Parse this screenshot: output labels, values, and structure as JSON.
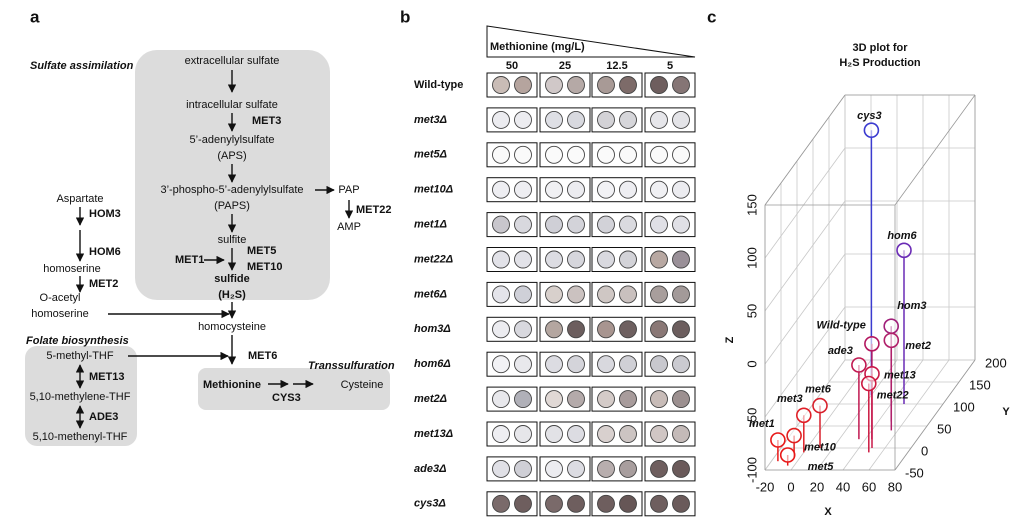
{
  "panel_a": {
    "label": "a",
    "sections": {
      "sulfate": "Sulfate assimilation",
      "folate": "Folate biosynthesis",
      "trans": "Transsulfuration"
    },
    "nodes": {
      "extracellular": "extracellular  sulfate",
      "intracellular": "intracellular  sulfate",
      "aps": "5’-adenylylsulfate",
      "aps_abbr": "(APS)",
      "paps": "3’-phospho-5’-adenylylsulfate",
      "paps_abbr": "(PAPS)",
      "pap": "PAP",
      "amp": "AMP",
      "sulfite": "sulfite",
      "sulfide": "sulfide",
      "h2s": "(H₂S)",
      "aspartate": "Aspartate",
      "homoserine": "homoserine",
      "o_acetyl": "O-acetyl",
      "o_acetyl_2": "homoserine",
      "homocysteine": "homocysteine",
      "methionine": "Methionine",
      "cysteine": "Cysteine",
      "methyl_thf": "5-methyl-THF",
      "methylene_thf": "5,10-methylene-THF",
      "methenyl_thf": "5,10-methenyl-THF"
    },
    "enzymes": {
      "met3": "MET3",
      "met22": "MET22",
      "met5": "MET5",
      "met10": "MET10",
      "met1": "MET1",
      "hom3": "HOM3",
      "hom6": "HOM6",
      "met2": "MET2",
      "met6": "MET6",
      "met13": "MET13",
      "ade3": "ADE3",
      "cys3": "CYS3"
    }
  },
  "panel_b": {
    "label": "b",
    "header": "Methionine (mg/L)",
    "columns": [
      "50",
      "25",
      "12.5",
      "5"
    ],
    "rows": [
      {
        "label": "Wild-type",
        "colors": [
          [
            "#c9bcb6",
            "#b5a49e"
          ],
          [
            "#d0c8c8",
            "#b5a9a6"
          ],
          [
            "#a89a96",
            "#7d6b69"
          ],
          [
            "#6e5e5e",
            "#857575"
          ]
        ]
      },
      {
        "label": "met3Δ",
        "colors": [
          [
            "#ececf0",
            "#ececf0"
          ],
          [
            "#dedfe5",
            "#d8d9df"
          ],
          [
            "#d3d2d6",
            "#d6d6da"
          ],
          [
            "#e6e6ea",
            "#e4e4e8"
          ]
        ]
      },
      {
        "label": "met5Δ",
        "colors": [
          [
            "#fafafa",
            "#fafafa"
          ],
          [
            "#fafafa",
            "#fafafa"
          ],
          [
            "#fafafa",
            "#fafafa"
          ],
          [
            "#fafafa",
            "#fafafa"
          ]
        ]
      },
      {
        "label": "met10Δ",
        "colors": [
          [
            "#eeeef2",
            "#eeeef2"
          ],
          [
            "#f0f0f3",
            "#ececf0"
          ],
          [
            "#f2f2f5",
            "#eeeef2"
          ],
          [
            "#f0f0f3",
            "#ececf0"
          ]
        ]
      },
      {
        "label": "met1Δ",
        "colors": [
          [
            "#c8c6cc",
            "#d8d8de"
          ],
          [
            "#cfcfd6",
            "#d3d3d9"
          ],
          [
            "#d2d2d8",
            "#dadadf"
          ],
          [
            "#e0e0e6",
            "#e0e0e6"
          ]
        ]
      },
      {
        "label": "met22Δ",
        "colors": [
          [
            "#e2e2e8",
            "#e2e2e8"
          ],
          [
            "#dcdce2",
            "#d6d6dc"
          ],
          [
            "#d9d9df",
            "#d3d3d8"
          ],
          [
            "#b8a8a2",
            "#9a9098"
          ]
        ]
      },
      {
        "label": "met6Δ",
        "colors": [
          [
            "#e4e4ea",
            "#cfd0d8"
          ],
          [
            "#d8d0cc",
            "#cbc2c0"
          ],
          [
            "#cfc7c4",
            "#c9c0be"
          ],
          [
            "#a89e9c",
            "#a39a99"
          ]
        ]
      },
      {
        "label": "hom3Δ",
        "colors": [
          [
            "#ececf0",
            "#d8d8de"
          ],
          [
            "#b4a6a0",
            "#6c5e5e"
          ],
          [
            "#a89590",
            "#6e6060"
          ],
          [
            "#8a7876",
            "#6c5e5e"
          ]
        ]
      },
      {
        "label": "hom6Δ",
        "colors": [
          [
            "#f2f2f5",
            "#e8e8ec"
          ],
          [
            "#dcdce2",
            "#d4d4da"
          ],
          [
            "#d8d8de",
            "#d0d0d6"
          ],
          [
            "#c8c8ce",
            "#cacad0"
          ]
        ]
      },
      {
        "label": "met2Δ",
        "colors": [
          [
            "#e8e8ec",
            "#b0b0b8"
          ],
          [
            "#e0d8d5",
            "#b4aaaa"
          ],
          [
            "#d4cbc8",
            "#a89c9c"
          ],
          [
            "#c8bcb8",
            "#9c9090"
          ]
        ]
      },
      {
        "label": "met13Δ",
        "colors": [
          [
            "#eeeef2",
            "#e6e6ea"
          ],
          [
            "#e2e2e6",
            "#dcdce2"
          ],
          [
            "#d8d0ce",
            "#ccc4c2"
          ],
          [
            "#d0c6c4",
            "#c4bab8"
          ]
        ]
      },
      {
        "label": "ade3Δ",
        "colors": [
          [
            "#e0e0e6",
            "#cfcfd6"
          ],
          [
            "#ececf0",
            "#dcdce2"
          ],
          [
            "#b8aeae",
            "#a89e9e"
          ],
          [
            "#6e5e5e",
            "#6a5a5a"
          ]
        ]
      },
      {
        "label": "cys3Δ",
        "colors": [
          [
            "#7a6a6a",
            "#6e5e5e"
          ],
          [
            "#7a6a6a",
            "#6e5e5e"
          ],
          [
            "#6e5e5e",
            "#665656"
          ],
          [
            "#6e5e5e",
            "#6a5a5a"
          ]
        ]
      }
    ]
  },
  "chart_data": {
    "type": "stem3d",
    "panel_label": "c",
    "title": "3D plot for",
    "subtitle": "H₂S Production",
    "xlabel": "X",
    "ylabel": "Y",
    "zlabel": "Z",
    "xlim": [
      -20,
      80
    ],
    "ylim": [
      -50,
      200
    ],
    "zlim": [
      -100,
      150
    ],
    "xticks": [
      -20,
      0,
      20,
      40,
      60,
      80
    ],
    "yticks": [
      -50,
      0,
      50,
      100,
      150,
      200
    ],
    "zticks": [
      -100,
      -50,
      0,
      50,
      100,
      150
    ],
    "grid": true,
    "points": [
      {
        "name": "cys3",
        "x": 20,
        "y": 120,
        "z": 150,
        "color": "#3b3bd0"
      },
      {
        "name": "hom6",
        "x": 50,
        "y": 100,
        "z": 45,
        "color": "#6a2bb5"
      },
      {
        "name": "hom3",
        "x": 50,
        "y": 60,
        "z": -10,
        "color": "#a0207a"
      },
      {
        "name": "met2",
        "x": 55,
        "y": 40,
        "z": -15,
        "color": "#b0206a"
      },
      {
        "name": "Wild-type",
        "x": 45,
        "y": 20,
        "z": -10,
        "color": "#b41860"
      },
      {
        "name": "ade3",
        "x": 35,
        "y": 20,
        "z": -30,
        "color": "#c01850"
      },
      {
        "name": "met13",
        "x": 50,
        "y": 0,
        "z": -30,
        "color": "#c81848"
      },
      {
        "name": "met22",
        "x": 50,
        "y": -10,
        "z": -35,
        "color": "#cc1840"
      },
      {
        "name": "met6",
        "x": 10,
        "y": 0,
        "z": -60,
        "color": "#d8202c"
      },
      {
        "name": "met3",
        "x": 0,
        "y": -10,
        "z": -65,
        "color": "#e02028"
      },
      {
        "name": "met10",
        "x": -5,
        "y": -20,
        "z": -80,
        "color": "#e02020"
      },
      {
        "name": "met1",
        "x": -15,
        "y": -30,
        "z": -80,
        "color": "#e81818"
      },
      {
        "name": "met5",
        "x": -5,
        "y": -40,
        "z": -90,
        "color": "#e81818"
      }
    ]
  }
}
